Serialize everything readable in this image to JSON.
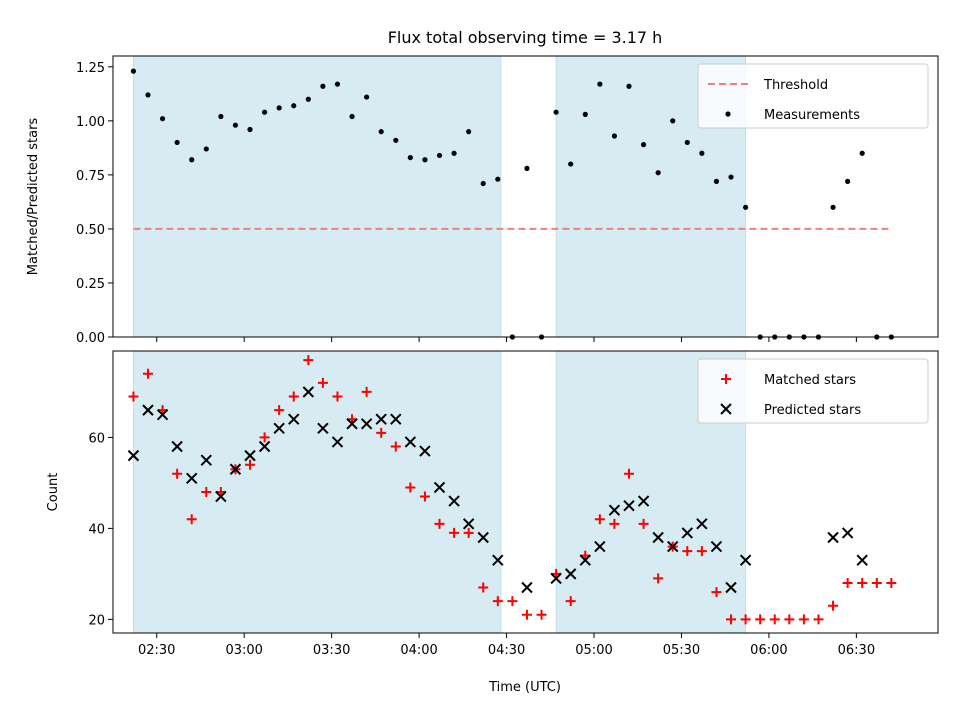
{
  "title": "Flux total observing time = 3.17 h",
  "xlabel": "Time (UTC)",
  "x_ticks": [
    "02:30",
    "03:00",
    "03:30",
    "04:00",
    "04:30",
    "05:00",
    "05:30",
    "06:00",
    "06:30"
  ],
  "colors": {
    "span": "#add8e6",
    "threshold": "#f08080",
    "measurement": "#000000",
    "matched": "#ff0000",
    "predicted": "#000000"
  },
  "chart_data": [
    {
      "type": "scatter",
      "ylabel": "Matched/Predicted stars",
      "xlim": [
        "02:15",
        "06:58"
      ],
      "ylim": [
        0,
        1.3
      ],
      "yticks": [
        "0.00",
        "0.25",
        "0.50",
        "0.75",
        "1.00",
        "1.25"
      ],
      "shaded_spans": [
        [
          "02:22",
          "04:28"
        ],
        [
          "04:47",
          "05:52"
        ]
      ],
      "threshold": {
        "name": "Threshold",
        "value": 0.5,
        "x_range": [
          "02:22",
          "06:42"
        ]
      },
      "legend": {
        "placement": "top-right",
        "entries": [
          "Threshold",
          "Measurements"
        ]
      },
      "series": [
        {
          "name": "Measurements",
          "x": [
            "02:22",
            "02:27",
            "02:32",
            "02:37",
            "02:42",
            "02:47",
            "02:52",
            "02:57",
            "03:02",
            "03:07",
            "03:12",
            "03:17",
            "03:22",
            "03:27",
            "03:32",
            "03:37",
            "03:42",
            "03:47",
            "03:52",
            "03:57",
            "04:02",
            "04:07",
            "04:12",
            "04:17",
            "04:22",
            "04:27",
            "04:32",
            "04:37",
            "04:42",
            "04:47",
            "04:52",
            "04:57",
            "05:02",
            "05:07",
            "05:12",
            "05:17",
            "05:22",
            "05:27",
            "05:32",
            "05:37",
            "05:42",
            "05:47",
            "05:52",
            "05:57",
            "06:02",
            "06:07",
            "06:12",
            "06:17",
            "06:22",
            "06:27",
            "06:32",
            "06:37",
            "06:42"
          ],
          "y": [
            1.23,
            1.12,
            1.01,
            0.9,
            0.82,
            0.87,
            1.02,
            0.98,
            0.96,
            1.04,
            1.06,
            1.07,
            1.1,
            1.16,
            1.17,
            1.02,
            1.11,
            0.95,
            0.91,
            0.83,
            0.82,
            0.84,
            0.85,
            0.95,
            0.71,
            0.73,
            0.0,
            0.78,
            0.0,
            1.04,
            0.8,
            1.03,
            1.17,
            0.93,
            1.16,
            0.89,
            0.76,
            1.0,
            0.9,
            0.85,
            0.72,
            0.74,
            0.6,
            0.0,
            0.0,
            0.0,
            0.0,
            0.0,
            0.6,
            0.72,
            0.85,
            0.0,
            0.0
          ]
        }
      ]
    },
    {
      "type": "scatter",
      "ylabel": "Count",
      "xlim": [
        "02:15",
        "06:58"
      ],
      "ylim": [
        17,
        79
      ],
      "yticks": [
        "20",
        "40",
        "60"
      ],
      "shaded_spans": [
        [
          "02:22",
          "04:28"
        ],
        [
          "04:47",
          "05:52"
        ]
      ],
      "legend": {
        "placement": "top-right",
        "entries": [
          "Matched stars",
          "Predicted stars"
        ]
      },
      "x": [
        "02:22",
        "02:27",
        "02:32",
        "02:37",
        "02:42",
        "02:47",
        "02:52",
        "02:57",
        "03:02",
        "03:07",
        "03:12",
        "03:17",
        "03:22",
        "03:27",
        "03:32",
        "03:37",
        "03:42",
        "03:47",
        "03:52",
        "03:57",
        "04:02",
        "04:07",
        "04:12",
        "04:17",
        "04:22",
        "04:27",
        "04:32",
        "04:37",
        "04:42",
        "04:47",
        "04:52",
        "04:57",
        "05:02",
        "05:07",
        "05:12",
        "05:17",
        "05:22",
        "05:27",
        "05:32",
        "05:37",
        "05:42",
        "05:47",
        "05:52",
        "05:57",
        "06:02",
        "06:07",
        "06:12",
        "06:17",
        "06:22",
        "06:27",
        "06:32",
        "06:37",
        "06:42"
      ],
      "series": [
        {
          "name": "Matched stars",
          "values": [
            69,
            74,
            66,
            52,
            42,
            48,
            48,
            53,
            54,
            60,
            66,
            69,
            77,
            72,
            69,
            64,
            70,
            61,
            58,
            49,
            47,
            41,
            39,
            39,
            27,
            24,
            24,
            21,
            21,
            30,
            24,
            34,
            42,
            41,
            52,
            41,
            29,
            36,
            35,
            35,
            26,
            20,
            20,
            20,
            20,
            20,
            20,
            20,
            23,
            28,
            28,
            28,
            28
          ]
        },
        {
          "name": "Predicted stars",
          "values": [
            56,
            66,
            65,
            58,
            51,
            55,
            47,
            53,
            56,
            58,
            62,
            64,
            70,
            62,
            59,
            63,
            63,
            64,
            64,
            59,
            57,
            49,
            46,
            41,
            38,
            33,
            null,
            27,
            null,
            29,
            30,
            33,
            36,
            44,
            45,
            46,
            38,
            36,
            39,
            41,
            36,
            27,
            33,
            null,
            null,
            null,
            null,
            null,
            38,
            39,
            33,
            null,
            null
          ]
        }
      ]
    }
  ]
}
